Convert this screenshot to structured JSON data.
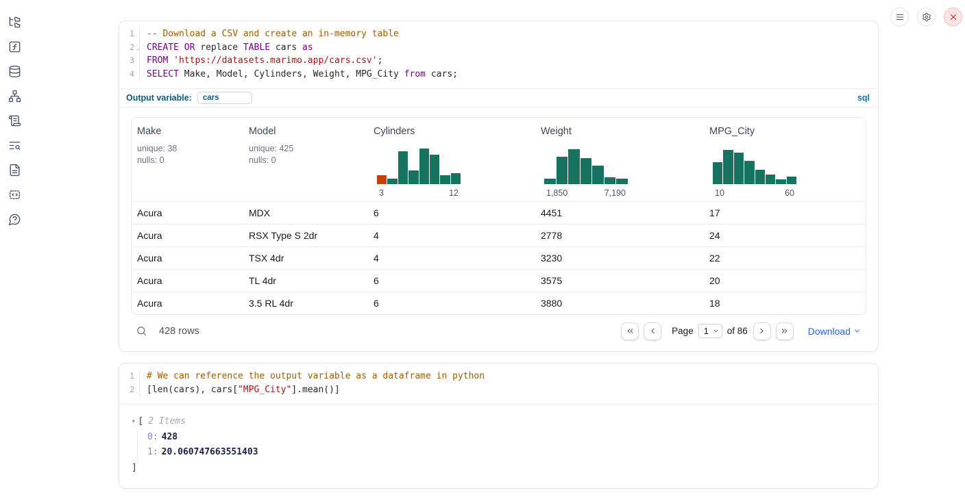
{
  "colors": {
    "hist_teal": "#17735f",
    "hist_orange": "#c2410c",
    "link_blue": "#2563eb"
  },
  "sidebar": {
    "icons": [
      "file-explorer",
      "functions",
      "datasources",
      "dependencies",
      "scratchpad",
      "logs",
      "documentation",
      "snippets",
      "help"
    ]
  },
  "window_controls": {
    "buttons": [
      "menu",
      "settings",
      "shutdown"
    ]
  },
  "sql_cell": {
    "lines": [
      {
        "num": "1",
        "tokens": [
          [
            "-- Download a CSV and create an in-memory table",
            "com"
          ]
        ]
      },
      {
        "num": "2",
        "fold": true,
        "tokens": [
          [
            "CREATE",
            "kw"
          ],
          [
            " ",
            ""
          ],
          [
            "OR",
            "kw"
          ],
          [
            " replace ",
            ""
          ],
          [
            "TABLE",
            "kw"
          ],
          [
            " cars ",
            ""
          ],
          [
            "as",
            "kw"
          ]
        ]
      },
      {
        "num": "3",
        "tokens": [
          [
            "FROM",
            "kw"
          ],
          [
            " ",
            ""
          ],
          [
            "'https://datasets.marimo.app/cars.csv'",
            "str"
          ],
          [
            ";",
            ""
          ]
        ]
      },
      {
        "num": "4",
        "tokens": [
          [
            "SELECT",
            "kw"
          ],
          [
            " Make, Model, Cylinders, Weight, MPG_City ",
            ""
          ],
          [
            "from",
            "kw"
          ],
          [
            " cars;",
            ""
          ]
        ]
      }
    ],
    "output_variable_label": "Output variable:",
    "output_variable_value": "cars",
    "language_badge": "sql"
  },
  "table": {
    "columns": [
      {
        "name": "Make",
        "stats": [
          "unique: 38",
          "nulls: 0"
        ]
      },
      {
        "name": "Model",
        "stats": [
          "unique: 425",
          "nulls: 0"
        ]
      },
      {
        "name": "Cylinders",
        "histogram": {
          "heights": [
            13,
            8,
            48,
            20,
            52,
            43,
            13,
            16
          ],
          "bar_color": "#17735f",
          "first_bar_color": "#c2410c",
          "min_label": "3",
          "max_label": "12"
        }
      },
      {
        "name": "Weight",
        "histogram": {
          "heights": [
            8,
            40,
            51,
            38,
            27,
            10,
            8
          ],
          "bar_color": "#17735f",
          "min_label": "1,850",
          "max_label": "7,190"
        }
      },
      {
        "name": "MPG_City",
        "histogram": {
          "heights": [
            32,
            50,
            46,
            34,
            21,
            14,
            7,
            11
          ],
          "bar_color": "#17735f",
          "min_label": "10",
          "max_label": "60"
        }
      }
    ],
    "rows": [
      [
        "Acura",
        "MDX",
        "6",
        "4451",
        "17"
      ],
      [
        "Acura",
        "RSX Type S 2dr",
        "4",
        "2778",
        "24"
      ],
      [
        "Acura",
        "TSX 4dr",
        "4",
        "3230",
        "22"
      ],
      [
        "Acura",
        "TL 4dr",
        "6",
        "3575",
        "20"
      ],
      [
        "Acura",
        "3.5 RL 4dr",
        "6",
        "3880",
        "18"
      ]
    ],
    "footer": {
      "row_count": "428 rows",
      "page_label": "Page",
      "page_value": "1",
      "page_total_label": "of 86",
      "download_label": "Download"
    }
  },
  "python_cell": {
    "lines": [
      {
        "num": "1",
        "tokens": [
          [
            "# We can reference the output variable as a dataframe in python",
            "com"
          ]
        ]
      },
      {
        "num": "2",
        "tokens": [
          [
            "[len(cars), cars[",
            ""
          ],
          [
            "\"MPG_City\"",
            "str"
          ],
          [
            "].mean()]",
            ""
          ]
        ]
      }
    ],
    "output": {
      "open_bracket": "[",
      "summary": "2 Items",
      "items": [
        {
          "index": "0:",
          "value": "428"
        },
        {
          "index": "1:",
          "value": "20.060747663551403"
        }
      ],
      "close_bracket": "]"
    }
  }
}
